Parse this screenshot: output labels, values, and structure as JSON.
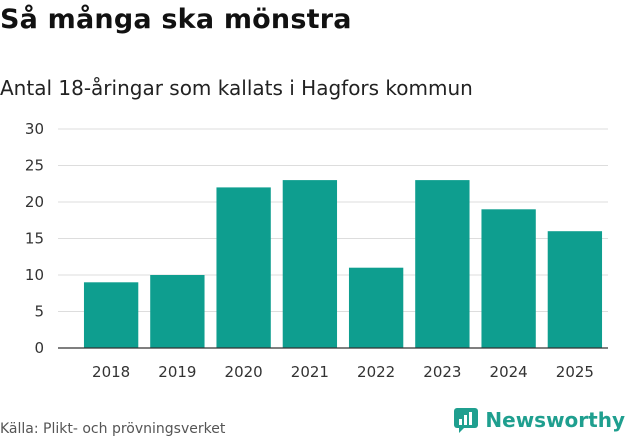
{
  "title": "Så många ska mönstra",
  "subtitle": "Antal 18-åringar som kallats i Hagfors kommun",
  "source": "Källa: Plikt- och prövningsverket",
  "brand": {
    "name": "Newsworthy",
    "icon": "newsworthy-logo-icon",
    "color": "#1f9f8f"
  },
  "chart_data": {
    "type": "bar",
    "title": "Så många ska mönstra",
    "subtitle": "Antal 18-åringar som kallats i Hagfors kommun",
    "categories": [
      "2018",
      "2019",
      "2020",
      "2021",
      "2022",
      "2023",
      "2024",
      "2025"
    ],
    "values": [
      9,
      10,
      22,
      23,
      11,
      23,
      19,
      16
    ],
    "ylim": [
      0,
      30
    ],
    "yticks": [
      0,
      5,
      10,
      15,
      20,
      25,
      30
    ],
    "grid": true,
    "bar_color": "#0e9e8f"
  }
}
